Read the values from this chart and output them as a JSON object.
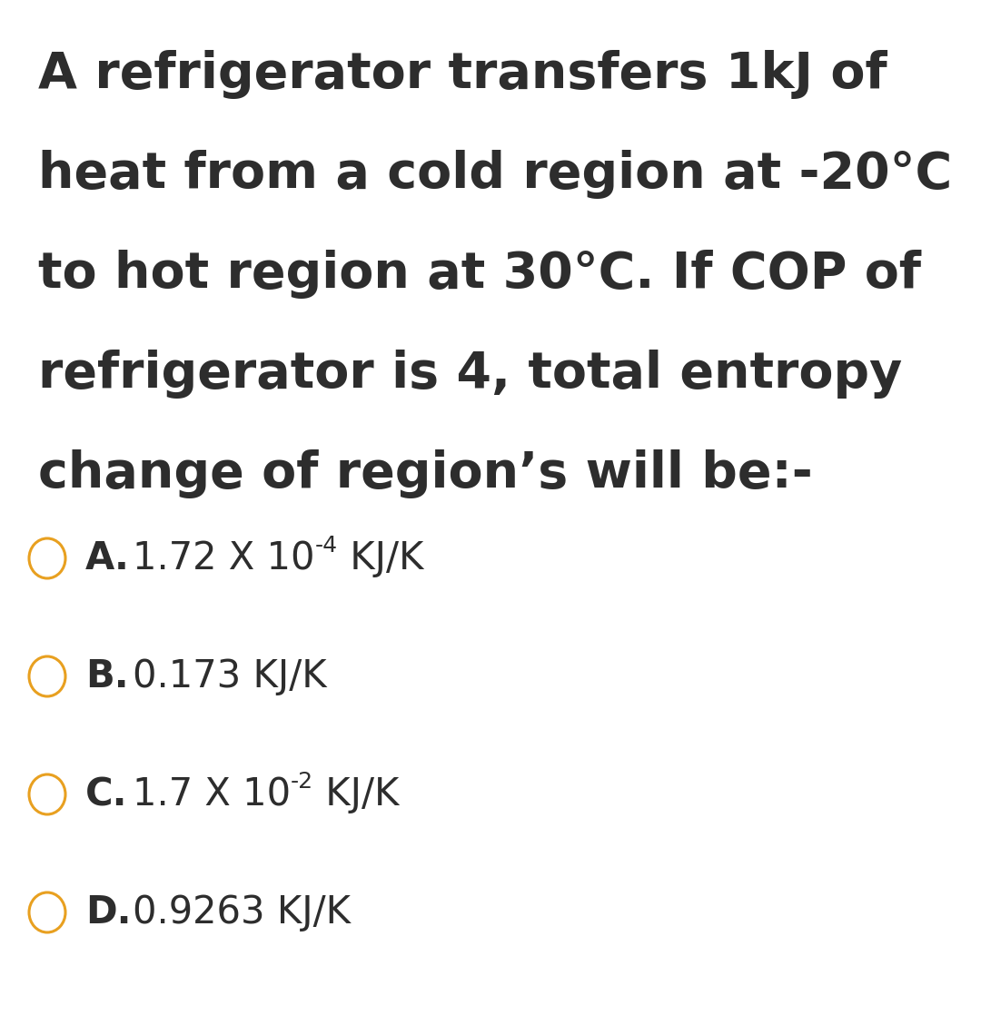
{
  "background_color": "#ffffff",
  "text_color": "#2d2d2d",
  "question_lines": [
    "A refrigerator transfers 1kJ of",
    "heat from a cold region at -20°C",
    "to hot region at 30°C. If COP of",
    "refrigerator is 4, total entropy",
    "change of region’s will be:-"
  ],
  "question_fontsize": 40,
  "options": [
    {
      "label": "A.",
      "main": "1.72 X 10",
      "sup": "-4",
      "after": " KJ/K"
    },
    {
      "label": "B.",
      "main": "0.173 KJ/K",
      "sup": "",
      "after": ""
    },
    {
      "label": "C.",
      "main": "1.7 X 10",
      "sup": "-2",
      "after": " KJ/K"
    },
    {
      "label": "D.",
      "main": "0.9263 KJ/K",
      "sup": "",
      "after": ""
    }
  ],
  "option_fontsize": 30,
  "circle_color": "#e8a020",
  "circle_linewidth": 2.2
}
